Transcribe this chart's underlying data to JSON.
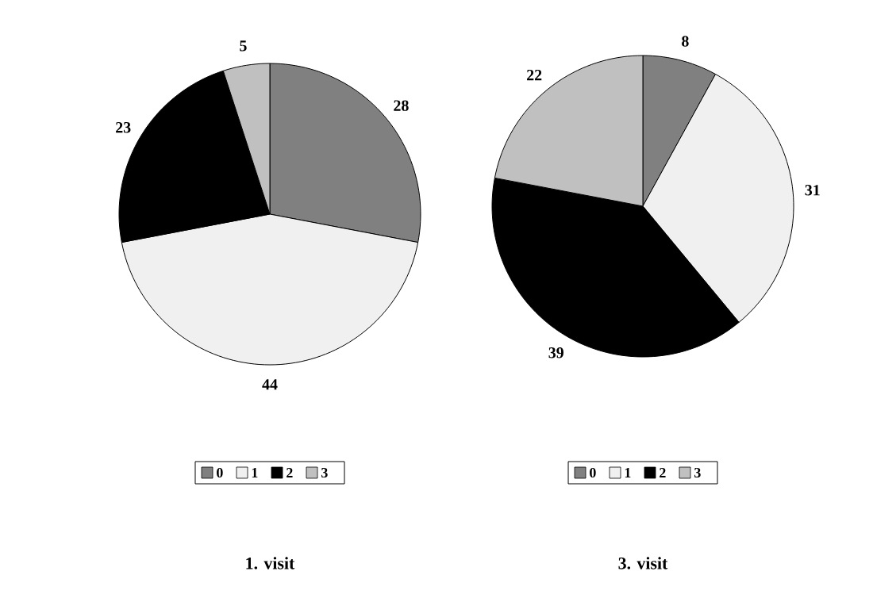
{
  "chart_data": [
    {
      "type": "pie",
      "title": "1. visit",
      "categories": [
        "0",
        "1",
        "2",
        "3"
      ],
      "values": [
        28,
        44,
        23,
        5
      ],
      "colors": [
        "#808080",
        "#f0f0f0",
        "#000000",
        "#c0c0c0"
      ],
      "data_labels": true,
      "legend": "bottom"
    },
    {
      "type": "pie",
      "title": "3. visit",
      "categories": [
        "0",
        "1",
        "2",
        "3"
      ],
      "values": [
        8,
        31,
        39,
        22
      ],
      "colors": [
        "#808080",
        "#f0f0f0",
        "#000000",
        "#c0c0c0"
      ],
      "data_labels": true,
      "legend": "bottom"
    }
  ]
}
